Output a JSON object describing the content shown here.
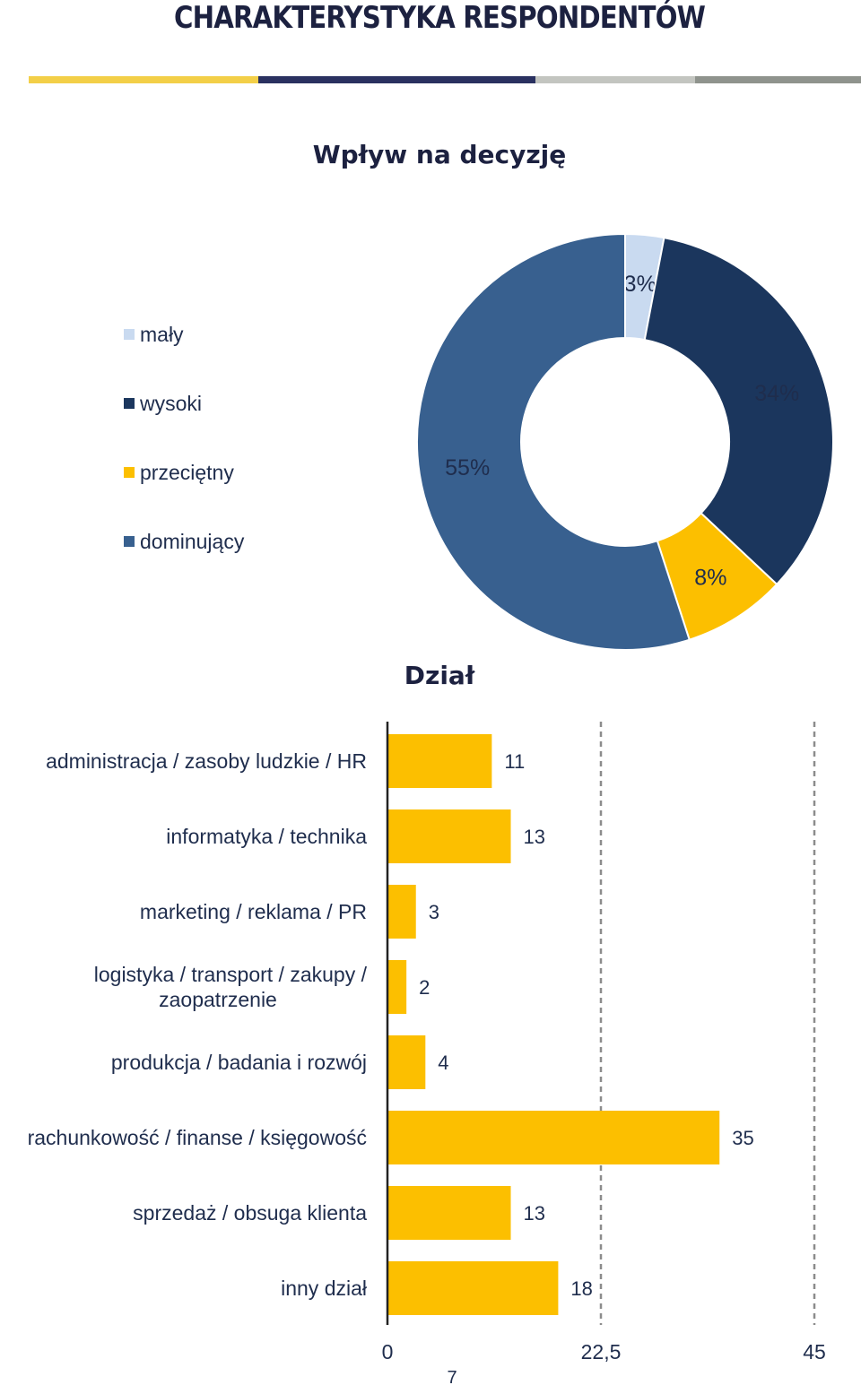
{
  "header": {
    "title": "CHARAKTERYSTYKA RESPONDENTÓW",
    "strip_colors": [
      "#f3cf48",
      "#2a3160",
      "#c3c5c0",
      "#8f938d"
    ]
  },
  "chart_data": [
    {
      "type": "pie",
      "title": "Wpływ na decyzję",
      "categories": [
        "mały",
        "wysoki",
        "przeciętny",
        "dominujący"
      ],
      "values": [
        3,
        34,
        8,
        55
      ],
      "value_labels": [
        "3%",
        "34%",
        "8%",
        "55%"
      ],
      "colors": [
        "#c9daf0",
        "#1b365d",
        "#fcbf00",
        "#38608f"
      ],
      "legend_position": "left",
      "donut": true
    },
    {
      "type": "bar",
      "orientation": "horizontal",
      "title": "Dział",
      "categories": [
        "administracja / zasoby ludzkie / HR",
        "informatyka / technika",
        "marketing / reklama / PR",
        "logistyka / transport / zakupy / zaopatrzenie",
        "produkcja / badania i rozwój",
        "rachunkowość / finanse / księgowość",
        "sprzedaż / obsuga klienta",
        "inny dział"
      ],
      "category_lines": [
        [
          "administracja / zasoby ludzkie / HR"
        ],
        [
          "informatyka / technika"
        ],
        [
          "marketing / reklama / PR"
        ],
        [
          "logistyka / transport / zakupy /",
          "zaopatrzenie"
        ],
        [
          "produkcja / badania i rozwój"
        ],
        [
          "rachunkowość / finanse / księgowość"
        ],
        [
          "sprzedaż / obsuga klienta"
        ],
        [
          "inny dział"
        ]
      ],
      "values": [
        11,
        13,
        3,
        2,
        4,
        35,
        13,
        18
      ],
      "value_labels": [
        "11",
        "13",
        "3",
        "2",
        "4",
        "35",
        "13",
        "18"
      ],
      "color": "#fcbf00",
      "xlim": [
        0,
        45
      ],
      "x_ticks": [
        0,
        22.5,
        45
      ],
      "x_tick_labels": [
        "0",
        "22,5",
        "45"
      ],
      "x_extra_label": "7",
      "grid": "dashed vertical lines at 22,5 and 45"
    }
  ]
}
